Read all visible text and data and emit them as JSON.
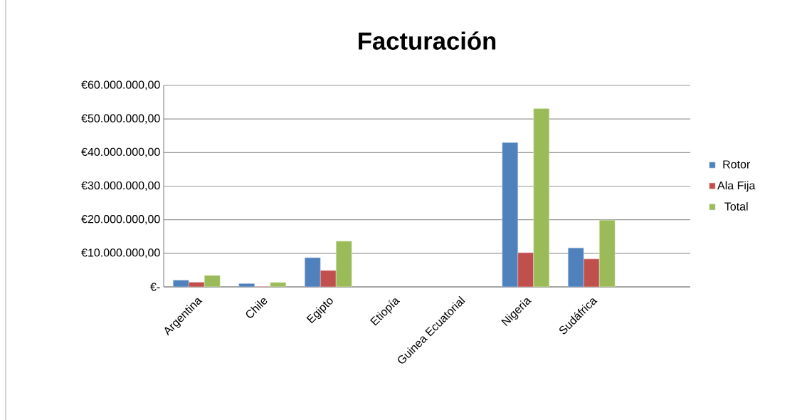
{
  "chart_data": {
    "type": "bar",
    "title": "Facturación",
    "categories": [
      "Argentina",
      "Chile",
      "Egipto",
      "Etiopía",
      "Guinea Ecuatorial",
      "Nigeria",
      "Sudáfrica",
      null
    ],
    "series": [
      {
        "name": "Rotor",
        "color": "#4f81bd",
        "values": [
          2000000,
          1000000,
          8700000,
          null,
          null,
          43000000,
          11600000,
          null
        ]
      },
      {
        "name": "Ala Fija",
        "color": "#c0504d",
        "values": [
          1400000,
          100000,
          4900000,
          null,
          null,
          10200000,
          8300000,
          null
        ]
      },
      {
        "name": "Total",
        "color": "#9bbb59",
        "values": [
          3400000,
          1300000,
          13600000,
          null,
          null,
          53100000,
          19900000,
          null
        ]
      }
    ],
    "ylim": [
      0,
      60000000
    ],
    "yticks": [
      {
        "value": 0,
        "label": "€-"
      },
      {
        "value": 10000000,
        "label": "€10.000.000,00"
      },
      {
        "value": 20000000,
        "label": "€20.000.000,00"
      },
      {
        "value": 30000000,
        "label": "€30.000.000,00"
      },
      {
        "value": 40000000,
        "label": "€40.000.000,00"
      },
      {
        "value": 50000000,
        "label": "€50.000.000,00"
      },
      {
        "value": 60000000,
        "label": "€60.000.000,00"
      }
    ],
    "grid": "y",
    "legend": "right"
  }
}
